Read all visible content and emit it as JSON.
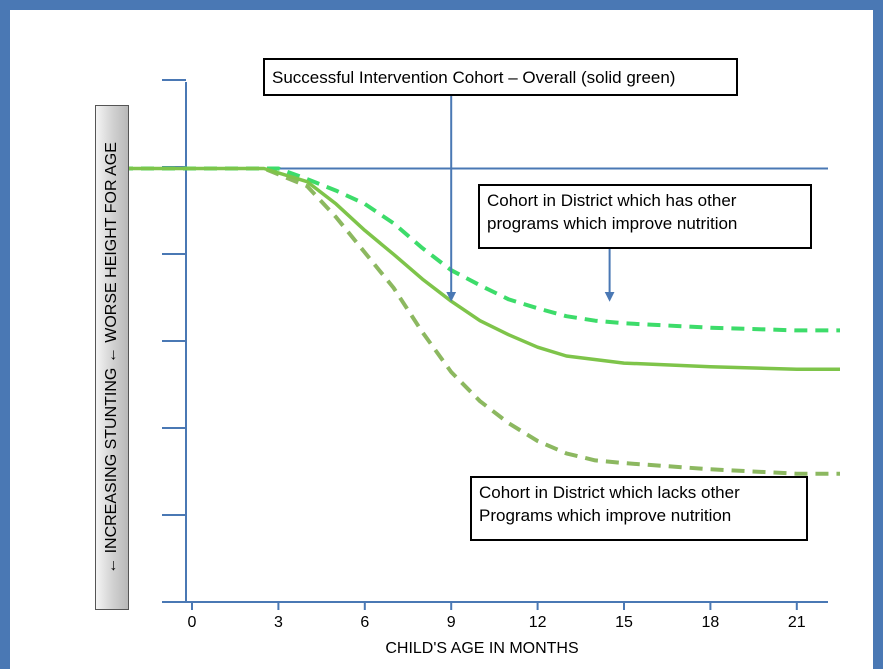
{
  "chart_data": {
    "type": "line",
    "title": "",
    "xlabel": "CHILD'S AGE IN MONTHS",
    "ylabel": "← INCREASING STUNTING ← WORSE HEIGHT FOR AGE",
    "x_ticks": [
      "0",
      "3",
      "6",
      "9",
      "12",
      "15",
      "18",
      "21"
    ],
    "xlim": [
      -2.5,
      22.5
    ],
    "y_units": "relative height-for-age (0 = baseline, negative = more stunting; axis has no numeric labels)",
    "ylim": [
      -4.9,
      1.0
    ],
    "y_tick_count": 6,
    "baseline": 0,
    "series": [
      {
        "name": "Successful Intervention Cohort – Overall (solid green)",
        "style": "solid",
        "color": "#7ec44a",
        "x": [
          -2.5,
          2.5,
          4,
          5,
          6,
          7,
          8,
          9,
          10,
          11,
          12,
          13,
          15,
          18,
          21,
          22.5
        ],
        "y": [
          0,
          0,
          -0.15,
          -0.4,
          -0.7,
          -0.97,
          -1.25,
          -1.5,
          -1.72,
          -1.88,
          -2.02,
          -2.12,
          -2.2,
          -2.24,
          -2.27,
          -2.27
        ]
      },
      {
        "name": "Cohort in District which has other programs which improve nutrition",
        "style": "dashed",
        "color": "#3ddc6a",
        "x": [
          -2.5,
          3,
          4,
          5,
          6,
          7,
          8,
          9,
          10,
          11,
          12,
          13,
          14,
          15,
          18,
          21,
          22.5
        ],
        "y": [
          0,
          0,
          -0.12,
          -0.25,
          -0.4,
          -0.62,
          -0.9,
          -1.15,
          -1.32,
          -1.48,
          -1.58,
          -1.67,
          -1.72,
          -1.75,
          -1.8,
          -1.83,
          -1.83
        ]
      },
      {
        "name": "Cohort in District which lacks other Programs which improve nutrition",
        "style": "dashed",
        "color": "#8cb860",
        "x": [
          -2.5,
          2.5,
          4,
          5,
          6,
          7,
          8,
          9,
          10,
          11,
          12,
          13,
          14,
          15,
          18,
          21,
          22.5
        ],
        "y": [
          0,
          0,
          -0.2,
          -0.55,
          -0.95,
          -1.35,
          -1.85,
          -2.3,
          -2.63,
          -2.88,
          -3.08,
          -3.22,
          -3.3,
          -3.33,
          -3.4,
          -3.45,
          -3.45
        ]
      }
    ],
    "annotations": [
      {
        "text": "Successful Intervention Cohort – Overall (solid green)",
        "points_to_series": 0,
        "arrow_x": 9,
        "arrow_y": -1.45
      },
      {
        "text": "Cohort in District which has other programs which improve nutrition",
        "points_to_series": 1,
        "arrow_x": 14.5,
        "arrow_y": -1.45
      },
      {
        "text": "Cohort in District which lacks other Programs which improve nutrition",
        "points_to_series": 2,
        "arrow_x": 14.5,
        "arrow_y": -3.58
      }
    ],
    "grid": false,
    "legend": "none (callout boxes with arrows)",
    "colors": {
      "frame": "#4a78b4",
      "axis": "#4a78b4",
      "arrow": "#4a78b4"
    }
  },
  "callouts": {
    "overall": "Successful Intervention Cohort – Overall (solid green)",
    "has_programs": "Cohort in District which has other programs which improve nutrition",
    "lacks_programs": "Cohort in District which lacks other Programs which improve nutrition"
  }
}
